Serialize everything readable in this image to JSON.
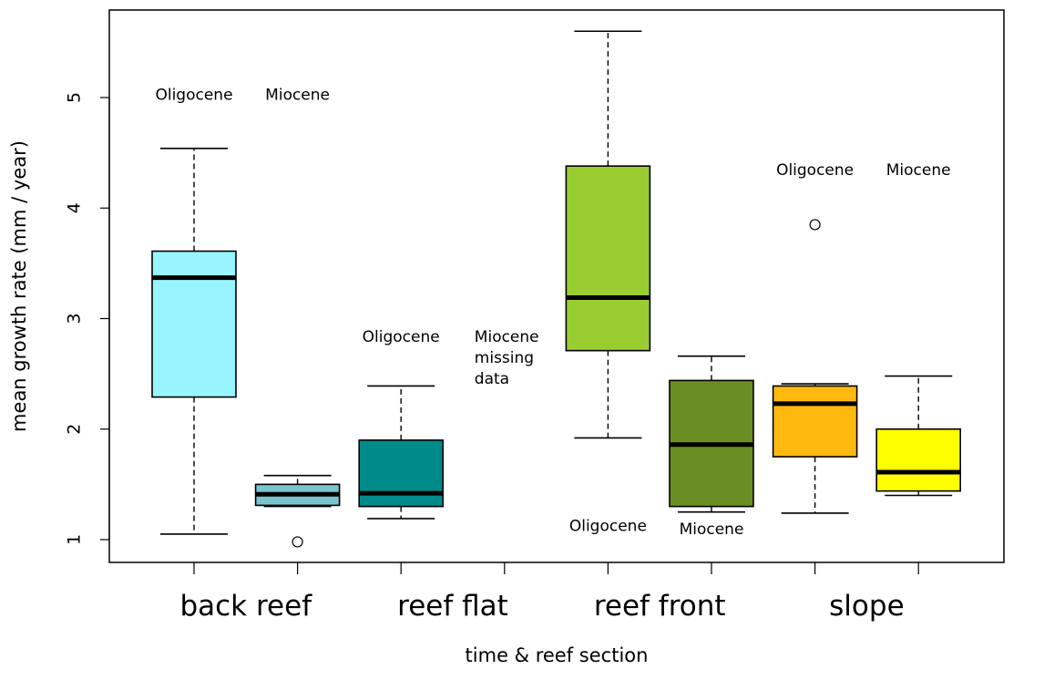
{
  "chart_data": {
    "type": "box",
    "title": "",
    "xlabel": "time & reef section",
    "ylabel": "mean growth rate (mm / year)",
    "ylim": [
      0.8,
      5.8
    ],
    "yticks": [
      1,
      2,
      3,
      4,
      5
    ],
    "grid": false,
    "legend": "none",
    "groups": [
      "back reef",
      "reef flat",
      "reef front",
      "slope"
    ],
    "boxes": [
      {
        "group": "back reef",
        "period": "Oligocene",
        "min": 1.05,
        "q1": 2.29,
        "median": 3.37,
        "q3": 3.61,
        "max": 4.54,
        "outliers": [],
        "color": "#98F5FF"
      },
      {
        "group": "back reef",
        "period": "Miocene",
        "min": 1.3,
        "q1": 1.31,
        "median": 1.41,
        "q3": 1.5,
        "max": 1.58,
        "outliers": [
          0.98
        ],
        "color": "#7AC5CD"
      },
      {
        "group": "reef flat",
        "period": "Oligocene",
        "min": 1.19,
        "q1": 1.3,
        "median": 1.42,
        "q3": 1.9,
        "max": 2.39,
        "outliers": [],
        "color": "#008B8B"
      },
      {
        "group": "reef flat",
        "period": "Miocene",
        "missing": true,
        "color": "#ffffff"
      },
      {
        "group": "reef front",
        "period": "Oligocene",
        "min": 1.92,
        "q1": 2.71,
        "median": 3.19,
        "q3": 4.38,
        "max": 5.6,
        "outliers": [],
        "color": "#9ACD32"
      },
      {
        "group": "reef front",
        "period": "Miocene",
        "min": 1.25,
        "q1": 1.3,
        "median": 1.86,
        "q3": 2.44,
        "max": 2.66,
        "outliers": [],
        "color": "#6B8E23"
      },
      {
        "group": "slope",
        "period": "Oligocene",
        "min": 1.24,
        "q1": 1.75,
        "median": 2.23,
        "q3": 2.39,
        "max": 2.41,
        "outliers": [
          3.85
        ],
        "color": "#FFB90F"
      },
      {
        "group": "slope",
        "period": "Miocene",
        "min": 1.4,
        "q1": 1.44,
        "median": 1.61,
        "q3": 2.0,
        "max": 2.48,
        "outliers": [],
        "color": "#FFFF00"
      }
    ],
    "annotations": [
      {
        "text": "Oligocene",
        "box": 0,
        "y": 4.98
      },
      {
        "text": "Miocene",
        "box": 1,
        "y": 4.98
      },
      {
        "text": "Oligocene",
        "box": 2,
        "y": 2.79
      },
      {
        "text": "Miocene\nmissing\ndata",
        "box": 3,
        "y": 2.79
      },
      {
        "text": "Oligocene",
        "box": 4,
        "y": 1.08
      },
      {
        "text": "Miocene",
        "box": 5,
        "y": 1.05
      },
      {
        "text": "Oligocene",
        "box": 6,
        "y": 4.3
      },
      {
        "text": "Miocene",
        "box": 7,
        "y": 4.3
      }
    ]
  }
}
